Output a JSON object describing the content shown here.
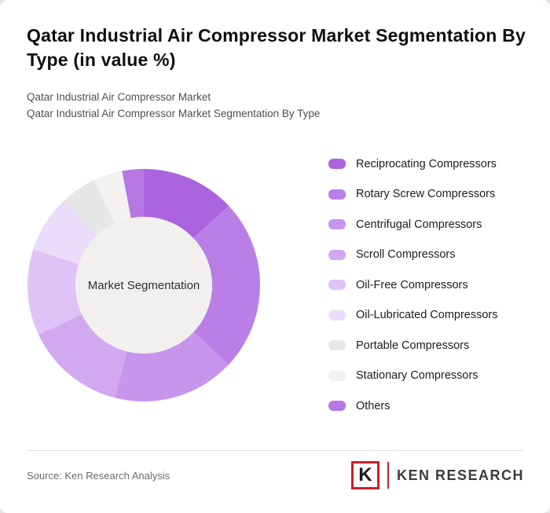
{
  "header": {
    "title": "Qatar Industrial Air Compressor Market Segmentation By Type (in value %)",
    "subtitle1": "Qatar Industrial Air Compressor Market",
    "subtitle2": "Qatar Industrial Air Compressor Market Segmentation By Type"
  },
  "chart_data": {
    "type": "pie",
    "variant": "donut",
    "title": "Qatar Industrial Air Compressor Market Segmentation By Type (in value %)",
    "center_label": "Market Segmentation",
    "legend_position": "right",
    "start_angle_deg": 0,
    "direction": "clockwise",
    "inner_radius_ratio": 0.59,
    "segments": [
      {
        "label": "Reciprocating Compressors",
        "value": 13,
        "color": "#ab63de"
      },
      {
        "label": "Rotary Screw Compressors",
        "value": 24,
        "color": "#b97fe6"
      },
      {
        "label": "Centrifugal Compressors",
        "value": 17,
        "color": "#c795ec"
      },
      {
        "label": "Scroll Compressors",
        "value": 14,
        "color": "#d2a9f0"
      },
      {
        "label": "Oil-Free Compressors",
        "value": 12,
        "color": "#dfc3f6"
      },
      {
        "label": "Oil-Lubricated Compressors",
        "value": 8,
        "color": "#ebddfa"
      },
      {
        "label": "Portable Compressors",
        "value": 5,
        "color": "#e8e7e7"
      },
      {
        "label": "Stationary Compressors",
        "value": 4,
        "color": "#f3f2f0"
      },
      {
        "label": "Others",
        "value": 3,
        "color": "#b678e2"
      }
    ]
  },
  "colors": {
    "brand_red": "#cb2026",
    "center_circle": "#f1f0ee",
    "title_color": "#0f0f0f",
    "subtitle_color": "#4f4f4f"
  },
  "footer": {
    "source": "Source: Ken Research Analysis",
    "logo_k": "K",
    "logo_text": "KEN RESEARCH"
  }
}
